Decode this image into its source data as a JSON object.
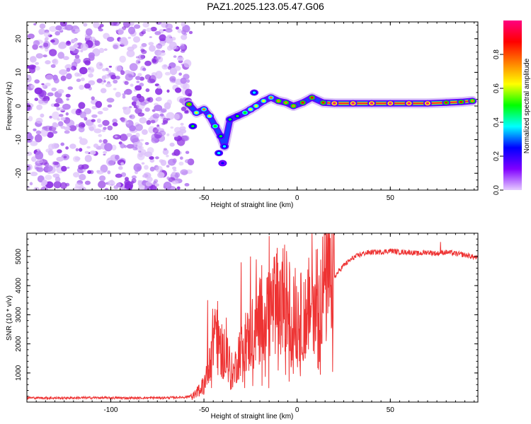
{
  "title": "PAZ1.2025.123.05.47.G06",
  "chart_data": [
    {
      "type": "heatmap",
      "xlabel": "Height of straight line (km)",
      "ylabel": "Frequency (Hz)",
      "xlim": [
        -145,
        97
      ],
      "ylim": [
        -25,
        25
      ],
      "x_ticks": [
        -100,
        -50,
        0,
        50
      ],
      "y_ticks": [
        -20,
        -10,
        0,
        10,
        20
      ],
      "colorbar": {
        "label": "Normalized spectral amplitude",
        "range": [
          0,
          1
        ],
        "ticks": [
          "0.0",
          "0.2",
          "0.4",
          "0.6",
          "0.8"
        ],
        "colors": [
          "#e6ccff",
          "#8000ff",
          "#0000ff",
          "#00ffff",
          "#00ff00",
          "#ffff00",
          "#ff8000",
          "#ff0000",
          "#ff0080"
        ]
      },
      "noise_region_x": [
        -145,
        -57
      ],
      "ridge": [
        {
          "x": -58,
          "f": 0.5,
          "a": 0.75
        },
        {
          "x": -54,
          "f": -2,
          "a": 0.6
        },
        {
          "x": -50,
          "f": -1,
          "a": 0.7
        },
        {
          "x": -47,
          "f": -3,
          "a": 0.65
        },
        {
          "x": -44,
          "f": -6,
          "a": 0.55
        },
        {
          "x": -41,
          "f": -9,
          "a": 0.5
        },
        {
          "x": -39,
          "f": -12,
          "a": 0.4
        },
        {
          "x": -36,
          "f": -4,
          "a": 0.45
        },
        {
          "x": -32,
          "f": -3,
          "a": 0.5
        },
        {
          "x": -28,
          "f": -2,
          "a": 0.55
        },
        {
          "x": -25,
          "f": -1,
          "a": 0.6
        },
        {
          "x": -22,
          "f": 0,
          "a": 0.6
        },
        {
          "x": -18,
          "f": 1.5,
          "a": 0.65
        },
        {
          "x": -14,
          "f": 2.5,
          "a": 0.7
        },
        {
          "x": -10,
          "f": 1.5,
          "a": 0.75
        },
        {
          "x": -6,
          "f": 1,
          "a": 0.8
        },
        {
          "x": -2,
          "f": 0,
          "a": 0.8
        },
        {
          "x": 3,
          "f": 1,
          "a": 0.85
        },
        {
          "x": 8,
          "f": 2.5,
          "a": 0.85
        },
        {
          "x": 14,
          "f": 1,
          "a": 0.9
        },
        {
          "x": 20,
          "f": 0.8,
          "a": 0.95
        },
        {
          "x": 30,
          "f": 0.8,
          "a": 0.95
        },
        {
          "x": 40,
          "f": 0.8,
          "a": 0.95
        },
        {
          "x": 50,
          "f": 0.8,
          "a": 0.95
        },
        {
          "x": 60,
          "f": 0.8,
          "a": 0.95
        },
        {
          "x": 70,
          "f": 0.8,
          "a": 0.95
        },
        {
          "x": 80,
          "f": 1,
          "a": 0.9
        },
        {
          "x": 88,
          "f": 1.2,
          "a": 0.85
        },
        {
          "x": 94,
          "f": 1.5,
          "a": 0.8
        }
      ],
      "side_branch": [
        {
          "x": -56,
          "f": -6,
          "a": 0.45
        },
        {
          "x": -42,
          "f": -14,
          "a": 0.35
        },
        {
          "x": -40,
          "f": -17,
          "a": 0.3
        },
        {
          "x": -23,
          "f": 4,
          "a": 0.35
        }
      ]
    },
    {
      "type": "line",
      "xlabel": "Height of straight line (km)",
      "ylabel": "SNR (10 * v/v)",
      "xlim": [
        -145,
        97
      ],
      "ylim": [
        0,
        5800
      ],
      "x_ticks": [
        -100,
        -50,
        0,
        50
      ],
      "y_ticks": [
        1000,
        2000,
        3000,
        4000,
        5000
      ],
      "color": "#ee3333",
      "series": [
        {
          "x": [
            -145,
            -130,
            -110,
            -90,
            -70,
            -60,
            -55,
            -50,
            -48,
            -46,
            -44,
            -42,
            -40,
            -38,
            -36,
            -34,
            -32,
            -30,
            -28,
            -26,
            -24,
            -22,
            -20,
            -18,
            -16,
            -14,
            -12,
            -10,
            -8,
            -6,
            -4,
            -2,
            0,
            2,
            4,
            6,
            8,
            10,
            12,
            14,
            16,
            18,
            20,
            25,
            30,
            35,
            40,
            45,
            50,
            55,
            60,
            65,
            70,
            75,
            80,
            85,
            90,
            97
          ],
          "y": [
            150,
            140,
            150,
            140,
            150,
            170,
            250,
            600,
            1200,
            1800,
            2600,
            2200,
            1600,
            1900,
            1200,
            1000,
            1500,
            2000,
            2300,
            2000,
            2500,
            2700,
            2800,
            3000,
            3100,
            3200,
            3400,
            3500,
            3600,
            3500,
            3200,
            3100,
            3000,
            2900,
            3000,
            3200,
            3500,
            3700,
            3800,
            3900,
            4000,
            4100,
            4300,
            4700,
            4950,
            5100,
            5150,
            5150,
            5200,
            5150,
            5150,
            5100,
            5150,
            5100,
            5150,
            5100,
            5050,
            4950
          ]
        }
      ],
      "spikes": [
        {
          "x": -48,
          "y": 3500
        },
        {
          "x": -44,
          "y": 3200
        },
        {
          "x": -38,
          "y": 2900
        },
        {
          "x": -30,
          "y": 4800
        },
        {
          "x": -25,
          "y": 5000
        },
        {
          "x": -22,
          "y": 4900
        },
        {
          "x": -19,
          "y": 4700
        },
        {
          "x": -15,
          "y": 5700
        },
        {
          "x": -11,
          "y": 5100
        },
        {
          "x": -7,
          "y": 4100
        },
        {
          "x": 2,
          "y": 4400
        },
        {
          "x": 8,
          "y": 5800
        },
        {
          "x": 15,
          "y": 4600
        },
        {
          "x": 77,
          "y": 5500
        }
      ]
    }
  ]
}
